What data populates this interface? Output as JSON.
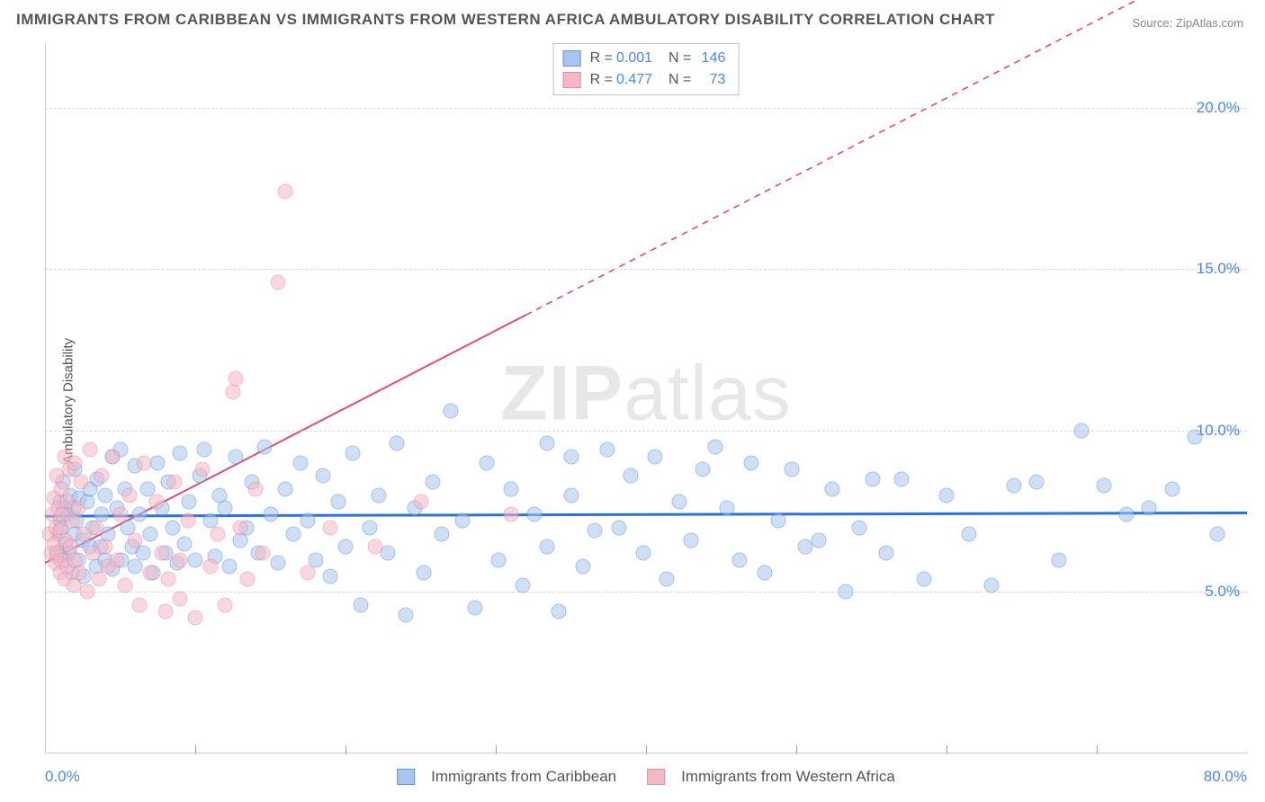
{
  "title": "IMMIGRANTS FROM CARIBBEAN VS IMMIGRANTS FROM WESTERN AFRICA AMBULATORY DISABILITY CORRELATION CHART",
  "source": "Source: ZipAtlas.com",
  "y_axis_label": "Ambulatory Disability",
  "watermark_bold": "ZIP",
  "watermark_rest": "atlas",
  "chart": {
    "type": "scatter",
    "background_color": "#ffffff",
    "grid_color": "#d8d8d8",
    "axis_color": "#cccccc",
    "x": {
      "min": 0,
      "max": 80,
      "ticks": [
        10,
        20,
        30,
        40,
        50,
        60,
        70
      ],
      "min_label": "0.0%",
      "max_label": "80.0%"
    },
    "y": {
      "min": 0,
      "max": 22,
      "grid": [
        5,
        10,
        15,
        20
      ],
      "labels": [
        "5.0%",
        "10.0%",
        "15.0%",
        "20.0%"
      ],
      "label_color": "#4a87e8",
      "label_fontsize": 17
    },
    "point_radius": 8.5,
    "point_stroke_width": 1.3,
    "series": [
      {
        "name": "Immigrants from Caribbean",
        "fill": "#a8c6ee",
        "stroke": "#5f94d8",
        "fill_opacity": 0.55,
        "r_label": "R =",
        "r_value": "0.001",
        "n_label": "N =",
        "n_value": "146",
        "trend": {
          "y_at_x0": 7.35,
          "y_at_x80": 7.45,
          "color": "#2d72d9",
          "width": 3,
          "solid_until_x": 80
        },
        "points": [
          [
            0.8,
            6.1
          ],
          [
            0.9,
            6.8
          ],
          [
            1.0,
            7.2
          ],
          [
            1.0,
            7.8
          ],
          [
            1.1,
            7.0
          ],
          [
            1.1,
            6.3
          ],
          [
            1.2,
            8.4
          ],
          [
            1.3,
            6.0
          ],
          [
            1.3,
            7.6
          ],
          [
            1.4,
            6.5
          ],
          [
            1.5,
            7.4
          ],
          [
            1.6,
            6.2
          ],
          [
            1.7,
            8.0
          ],
          [
            1.8,
            5.6
          ],
          [
            1.9,
            7.6
          ],
          [
            2.0,
            8.8
          ],
          [
            2.0,
            6.8
          ],
          [
            2.1,
            7.2
          ],
          [
            2.2,
            6.0
          ],
          [
            2.3,
            7.9
          ],
          [
            2.5,
            6.6
          ],
          [
            2.6,
            5.5
          ],
          [
            2.8,
            7.8
          ],
          [
            3.0,
            8.2
          ],
          [
            3.0,
            6.4
          ],
          [
            3.2,
            7.0
          ],
          [
            3.4,
            5.8
          ],
          [
            3.5,
            8.5
          ],
          [
            3.7,
            6.4
          ],
          [
            3.8,
            7.4
          ],
          [
            4.0,
            6.0
          ],
          [
            4.0,
            8.0
          ],
          [
            4.2,
            6.8
          ],
          [
            4.5,
            9.2
          ],
          [
            4.5,
            5.7
          ],
          [
            4.8,
            7.6
          ],
          [
            5.0,
            9.4
          ],
          [
            5.1,
            6.0
          ],
          [
            5.3,
            8.2
          ],
          [
            5.5,
            7.0
          ],
          [
            5.8,
            6.4
          ],
          [
            6.0,
            8.9
          ],
          [
            6.0,
            5.8
          ],
          [
            6.3,
            7.4
          ],
          [
            6.5,
            6.2
          ],
          [
            6.8,
            8.2
          ],
          [
            7.0,
            6.8
          ],
          [
            7.2,
            5.6
          ],
          [
            7.5,
            9.0
          ],
          [
            7.8,
            7.6
          ],
          [
            8.0,
            6.2
          ],
          [
            8.2,
            8.4
          ],
          [
            8.5,
            7.0
          ],
          [
            8.8,
            5.9
          ],
          [
            9.0,
            9.3
          ],
          [
            9.3,
            6.5
          ],
          [
            9.6,
            7.8
          ],
          [
            10.0,
            6.0
          ],
          [
            10.3,
            8.6
          ],
          [
            10.6,
            9.4
          ],
          [
            11.0,
            7.2
          ],
          [
            11.3,
            6.1
          ],
          [
            11.6,
            8.0
          ],
          [
            12.0,
            7.6
          ],
          [
            12.3,
            5.8
          ],
          [
            12.7,
            9.2
          ],
          [
            13.0,
            6.6
          ],
          [
            13.4,
            7.0
          ],
          [
            13.8,
            8.4
          ],
          [
            14.2,
            6.2
          ],
          [
            14.6,
            9.5
          ],
          [
            15.0,
            7.4
          ],
          [
            15.5,
            5.9
          ],
          [
            16.0,
            8.2
          ],
          [
            16.5,
            6.8
          ],
          [
            17.0,
            9.0
          ],
          [
            17.5,
            7.2
          ],
          [
            18.0,
            6.0
          ],
          [
            18.5,
            8.6
          ],
          [
            19.0,
            5.5
          ],
          [
            19.5,
            7.8
          ],
          [
            20.0,
            6.4
          ],
          [
            20.5,
            9.3
          ],
          [
            21.0,
            4.6
          ],
          [
            21.6,
            7.0
          ],
          [
            22.2,
            8.0
          ],
          [
            22.8,
            6.2
          ],
          [
            23.4,
            9.6
          ],
          [
            24.0,
            4.3
          ],
          [
            24.6,
            7.6
          ],
          [
            25.2,
            5.6
          ],
          [
            25.8,
            8.4
          ],
          [
            26.4,
            6.8
          ],
          [
            27.0,
            10.6
          ],
          [
            27.8,
            7.2
          ],
          [
            28.6,
            4.5
          ],
          [
            29.4,
            9.0
          ],
          [
            30.2,
            6.0
          ],
          [
            31.0,
            8.2
          ],
          [
            31.8,
            5.2
          ],
          [
            32.6,
            7.4
          ],
          [
            33.4,
            9.6
          ],
          [
            33.4,
            6.4
          ],
          [
            34.2,
            4.4
          ],
          [
            35.0,
            9.2
          ],
          [
            35.0,
            8.0
          ],
          [
            35.8,
            5.8
          ],
          [
            36.6,
            6.9
          ],
          [
            37.4,
            9.4
          ],
          [
            38.2,
            7.0
          ],
          [
            39.0,
            8.6
          ],
          [
            39.8,
            6.2
          ],
          [
            40.6,
            9.2
          ],
          [
            41.4,
            5.4
          ],
          [
            42.2,
            7.8
          ],
          [
            43.0,
            6.6
          ],
          [
            43.8,
            8.8
          ],
          [
            44.6,
            9.5
          ],
          [
            45.4,
            7.6
          ],
          [
            46.2,
            6.0
          ],
          [
            47.0,
            9.0
          ],
          [
            47.9,
            5.6
          ],
          [
            48.8,
            7.2
          ],
          [
            49.7,
            8.8
          ],
          [
            50.6,
            6.4
          ],
          [
            51.5,
            6.6
          ],
          [
            52.4,
            8.2
          ],
          [
            53.3,
            5.0
          ],
          [
            54.2,
            7.0
          ],
          [
            55.1,
            8.5
          ],
          [
            56.0,
            6.2
          ],
          [
            57.0,
            8.5
          ],
          [
            58.5,
            5.4
          ],
          [
            60.0,
            8.0
          ],
          [
            61.5,
            6.8
          ],
          [
            63.0,
            5.2
          ],
          [
            64.5,
            8.3
          ],
          [
            66.0,
            8.4
          ],
          [
            67.5,
            6.0
          ],
          [
            69.0,
            10.0
          ],
          [
            70.5,
            8.3
          ],
          [
            72.0,
            7.4
          ],
          [
            73.5,
            7.6
          ],
          [
            75.0,
            8.2
          ],
          [
            76.5,
            9.8
          ],
          [
            78.0,
            6.8
          ]
        ]
      },
      {
        "name": "Immigrants from Western Africa",
        "fill": "#f5b8c6",
        "stroke": "#e88aa0",
        "fill_opacity": 0.55,
        "r_label": "R =",
        "r_value": "0.477",
        "n_label": "N =",
        "n_value": "73",
        "trend": {
          "y_at_x0": 5.9,
          "y_at_x80": 25.1,
          "color": "#e24a7a",
          "width": 2,
          "solid_until_x": 32
        },
        "points": [
          [
            0.3,
            6.8
          ],
          [
            0.4,
            6.2
          ],
          [
            0.5,
            7.4
          ],
          [
            0.6,
            6.5
          ],
          [
            0.6,
            7.9
          ],
          [
            0.7,
            5.9
          ],
          [
            0.7,
            7.0
          ],
          [
            0.8,
            8.6
          ],
          [
            0.8,
            6.2
          ],
          [
            0.9,
            7.6
          ],
          [
            1.0,
            5.6
          ],
          [
            1.0,
            6.9
          ],
          [
            1.1,
            8.2
          ],
          [
            1.1,
            6.0
          ],
          [
            1.2,
            7.4
          ],
          [
            1.3,
            5.4
          ],
          [
            1.3,
            9.2
          ],
          [
            1.4,
            6.6
          ],
          [
            1.5,
            7.8
          ],
          [
            1.5,
            5.8
          ],
          [
            1.6,
            8.8
          ],
          [
            1.7,
            6.4
          ],
          [
            1.8,
            7.2
          ],
          [
            1.9,
            5.2
          ],
          [
            2.0,
            9.0
          ],
          [
            2.0,
            6.0
          ],
          [
            2.2,
            7.6
          ],
          [
            2.3,
            5.6
          ],
          [
            2.4,
            8.4
          ],
          [
            2.6,
            6.8
          ],
          [
            2.8,
            5.0
          ],
          [
            3.0,
            9.4
          ],
          [
            3.2,
            6.2
          ],
          [
            3.4,
            7.0
          ],
          [
            3.6,
            5.4
          ],
          [
            3.8,
            8.6
          ],
          [
            4.0,
            6.4
          ],
          [
            4.2,
            5.8
          ],
          [
            4.5,
            9.2
          ],
          [
            4.8,
            6.0
          ],
          [
            5.0,
            7.4
          ],
          [
            5.3,
            5.2
          ],
          [
            5.6,
            8.0
          ],
          [
            6.0,
            6.6
          ],
          [
            6.3,
            4.6
          ],
          [
            6.6,
            9.0
          ],
          [
            7.0,
            5.6
          ],
          [
            7.4,
            7.8
          ],
          [
            7.8,
            6.2
          ],
          [
            8.0,
            4.4
          ],
          [
            8.2,
            5.4
          ],
          [
            8.6,
            8.4
          ],
          [
            9.0,
            6.0
          ],
          [
            9.0,
            4.8
          ],
          [
            9.5,
            7.2
          ],
          [
            10.0,
            4.2
          ],
          [
            10.5,
            8.8
          ],
          [
            11.0,
            5.8
          ],
          [
            11.5,
            6.8
          ],
          [
            12.0,
            4.6
          ],
          [
            12.5,
            11.2
          ],
          [
            12.7,
            11.6
          ],
          [
            13.0,
            7.0
          ],
          [
            13.5,
            5.4
          ],
          [
            14.0,
            8.2
          ],
          [
            14.5,
            6.2
          ],
          [
            15.5,
            14.6
          ],
          [
            16.0,
            17.4
          ],
          [
            17.5,
            5.6
          ],
          [
            19.0,
            7.0
          ],
          [
            22.0,
            6.4
          ],
          [
            25.0,
            7.8
          ],
          [
            31.0,
            7.4
          ]
        ]
      }
    ]
  }
}
